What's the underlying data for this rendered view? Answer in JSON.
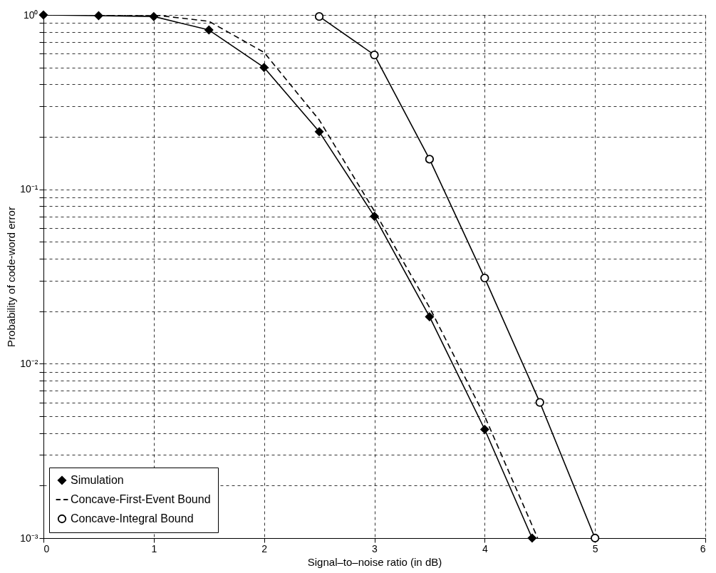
{
  "chart_data": {
    "type": "line",
    "xlabel": "Signal–to–noise ratio (in dB)",
    "ylabel": "Probability of code-word error",
    "log": "y",
    "grid": true,
    "legend": "bottom left",
    "xlim": [
      0,
      6
    ],
    "xticks": [
      0,
      1,
      2,
      3,
      4,
      5,
      6
    ],
    "ylim": [
      0.001,
      1
    ],
    "yticks": [
      {
        "value": 0.001,
        "label": "10⁻³"
      },
      {
        "value": 0.002,
        "label": null
      },
      {
        "value": 0.003,
        "label": null
      },
      {
        "value": 0.004,
        "label": null
      },
      {
        "value": 0.005,
        "label": null
      },
      {
        "value": 0.006,
        "label": null
      },
      {
        "value": 0.007,
        "label": null
      },
      {
        "value": 0.008,
        "label": null
      },
      {
        "value": 0.009,
        "label": null
      },
      {
        "value": 0.01,
        "label": "10⁻²"
      },
      {
        "value": 0.02,
        "label": null
      },
      {
        "value": 0.03,
        "label": null
      },
      {
        "value": 0.04,
        "label": null
      },
      {
        "value": 0.05,
        "label": null
      },
      {
        "value": 0.06,
        "label": null
      },
      {
        "value": 0.07,
        "label": null
      },
      {
        "value": 0.08,
        "label": null
      },
      {
        "value": 0.09,
        "label": null
      },
      {
        "value": 0.1,
        "label": "10⁻¹"
      },
      {
        "value": 0.2,
        "label": null
      },
      {
        "value": 0.3,
        "label": null
      },
      {
        "value": 0.4,
        "label": null
      },
      {
        "value": 0.5,
        "label": null
      },
      {
        "value": 0.6,
        "label": null
      },
      {
        "value": 0.7,
        "label": null
      },
      {
        "value": 0.8,
        "label": null
      },
      {
        "value": 0.9,
        "label": null
      },
      {
        "value": 1,
        "label": "10⁰"
      }
    ],
    "series": [
      {
        "name": "Simulation",
        "color": "#000000",
        "marker": "diamond",
        "line_style": "solid",
        "x": [
          0,
          0.5,
          1,
          1.5,
          2,
          2.5,
          3,
          3.5,
          4,
          4.43
        ],
        "values": [
          1,
          0.99,
          0.98,
          0.82,
          0.5,
          0.214,
          0.07,
          0.0186,
          0.0042,
          0.001
        ]
      },
      {
        "name": "Concave-First-Event Bound",
        "color": "#000000",
        "marker": "none",
        "line_style": "dashed",
        "x": [
          0,
          0.5,
          1,
          1.5,
          2,
          2.5,
          3,
          3.5,
          4,
          4.48
        ],
        "values": [
          1,
          1,
          1,
          0.92,
          0.61,
          0.25,
          0.075,
          0.021,
          0.005,
          0.001
        ]
      },
      {
        "name": "Concave-Integral Bound",
        "color": "#000000",
        "marker": "circle",
        "line_style": "solid",
        "x": [
          2.5,
          3,
          3.5,
          4,
          4.5,
          5
        ],
        "values": [
          0.98,
          0.59,
          0.149,
          0.031,
          0.006,
          0.001
        ]
      }
    ]
  }
}
